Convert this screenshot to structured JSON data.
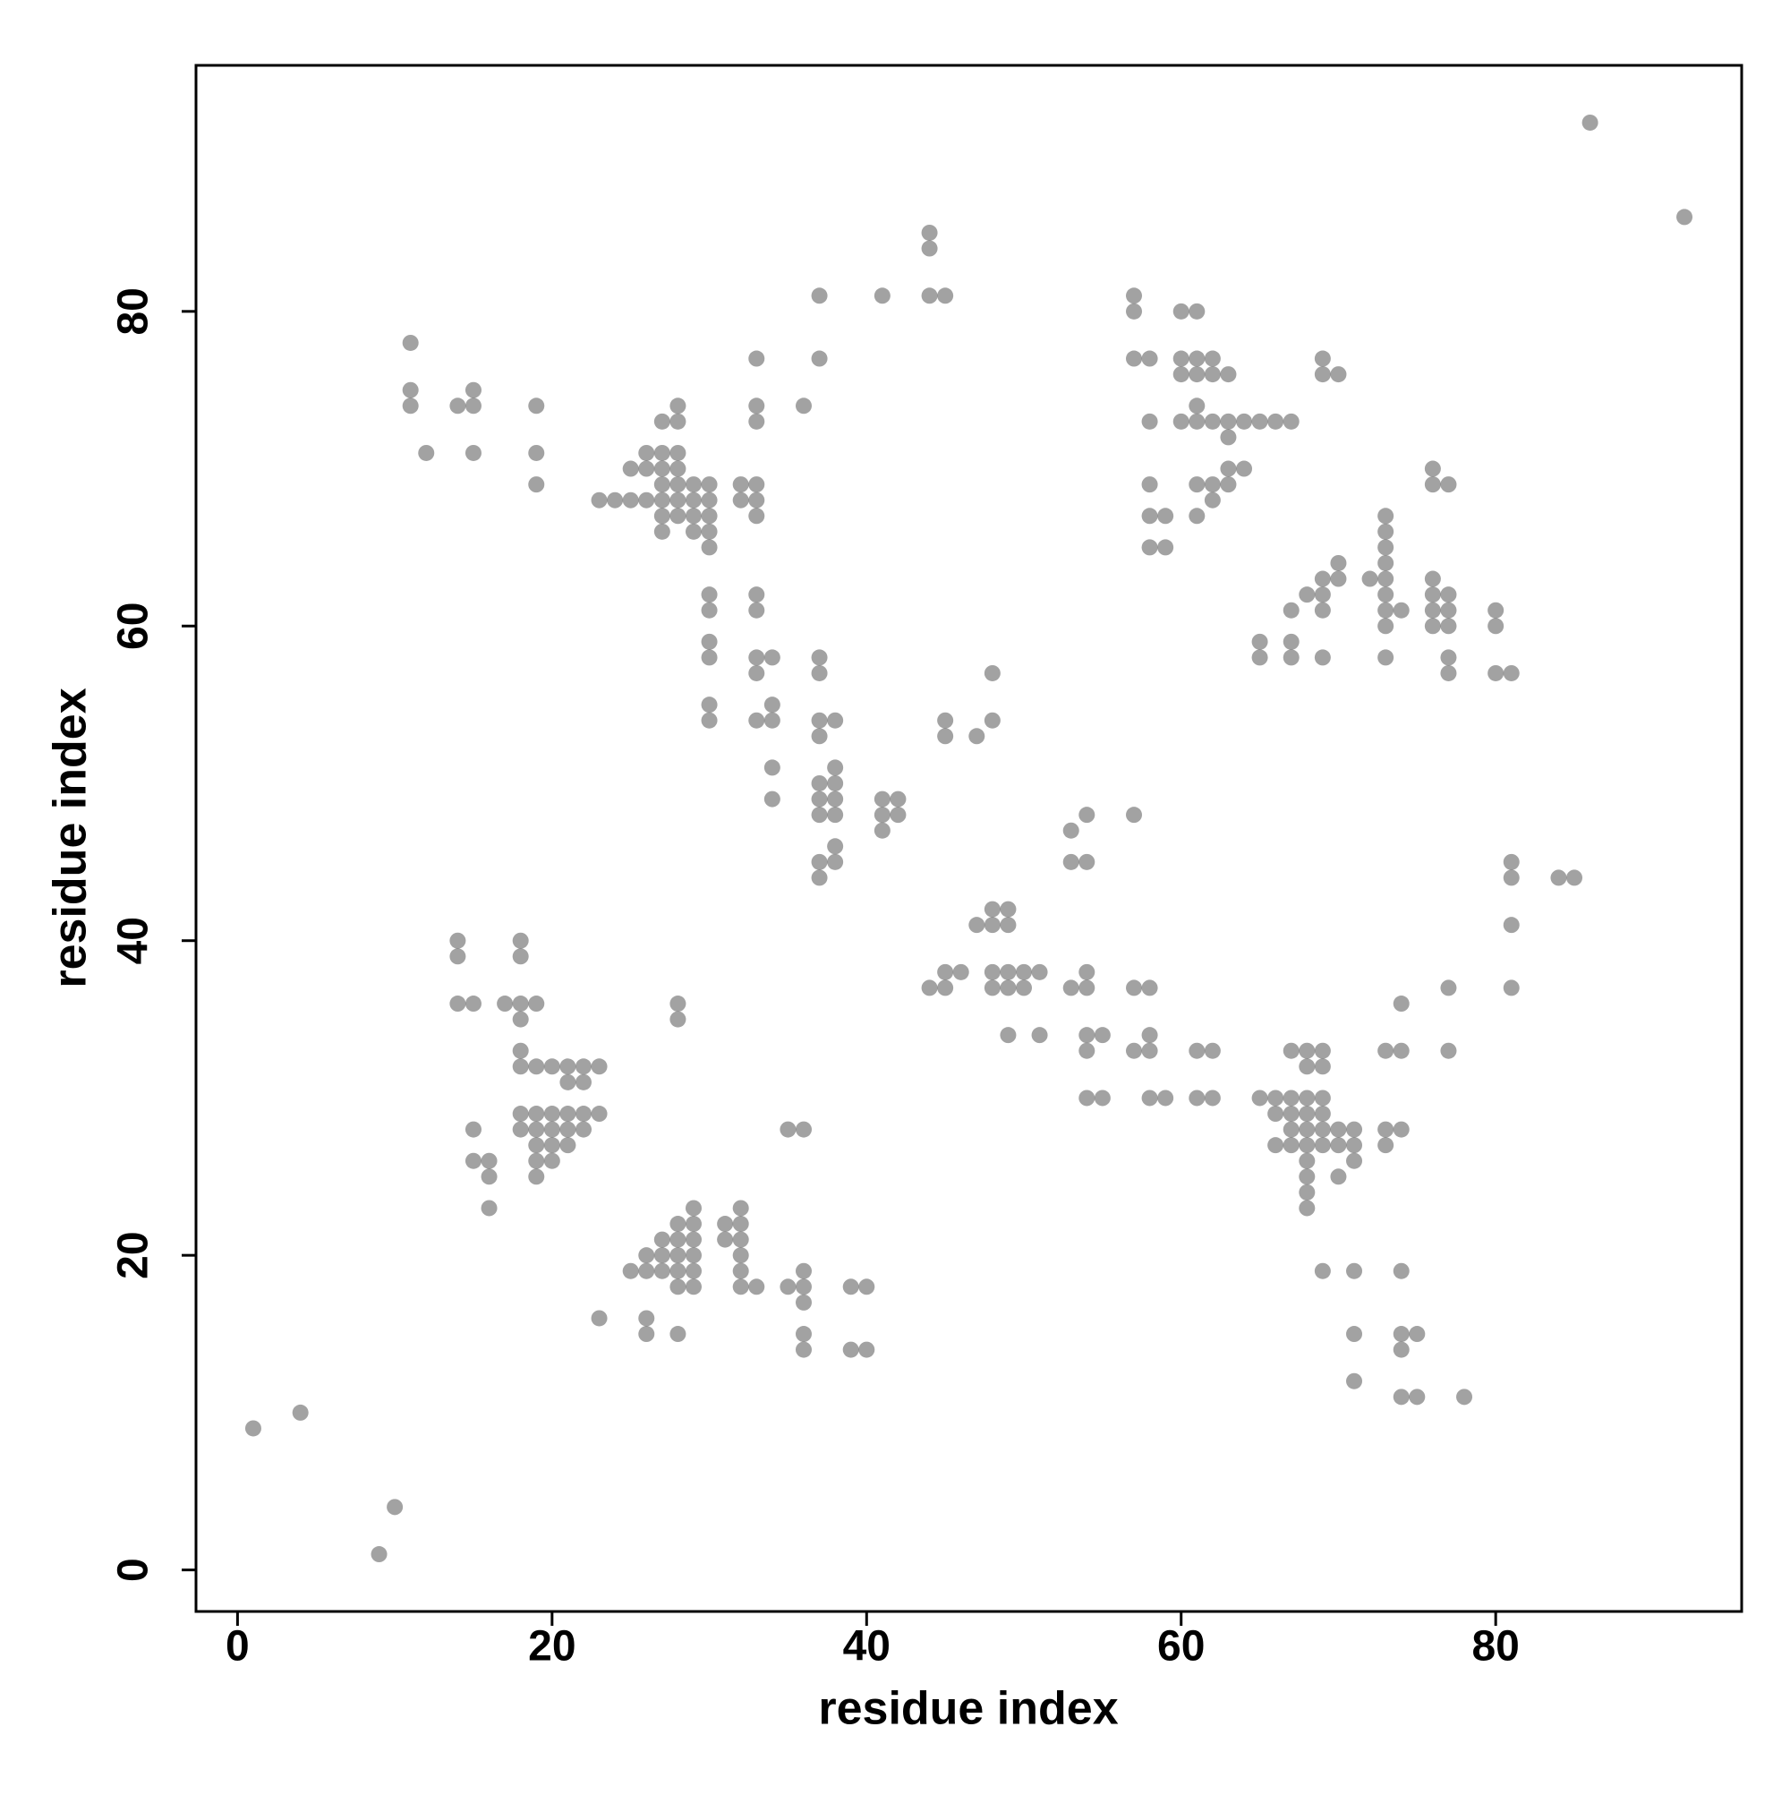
{
  "chart_data": {
    "type": "scatter",
    "x_label": "residue index",
    "y_label": "residue index",
    "color": "#555555",
    "xlim": [
      -2.64,
      95.64
    ],
    "ylim": [
      -2.64,
      95.64
    ],
    "xticks": [
      0,
      20,
      40,
      60,
      80
    ],
    "yticks": [
      0,
      20,
      40,
      60,
      80
    ],
    "grid": false,
    "x": [
      1,
      4,
      10,
      9,
      86,
      92,
      11,
      11,
      11,
      12,
      14,
      15,
      15,
      15,
      19,
      19,
      19,
      23,
      24,
      25,
      25,
      26,
      26,
      26,
      27,
      27,
      27,
      27,
      27,
      27,
      27,
      28,
      28,
      28,
      28,
      28,
      28,
      28,
      29,
      29,
      29,
      29,
      30,
      30,
      30,
      30,
      30,
      32,
      32,
      33,
      33,
      33,
      33,
      33,
      33,
      36,
      37,
      37,
      41,
      44,
      44,
      44,
      45,
      30,
      30,
      30,
      30,
      30,
      30,
      33,
      33,
      33,
      33,
      34,
      33,
      34,
      34,
      34,
      34,
      37,
      37,
      37,
      37,
      38,
      37,
      38,
      38,
      37,
      38,
      37,
      38,
      38,
      37,
      38,
      37,
      41,
      42,
      41,
      42,
      41,
      45,
      45,
      47,
      48,
      48,
      53,
      53,
      54,
      54,
      57,
      44,
      45,
      45,
      46,
      47,
      48,
      48,
      49,
      49,
      48,
      48,
      49,
      49,
      50,
      50,
      51,
      49,
      51,
      53,
      54,
      54,
      54,
      55,
      54,
      54,
      55,
      57,
      58,
      57,
      58,
      58,
      58,
      59,
      61,
      62,
      61,
      62,
      65,
      66,
      66,
      66,
      67,
      67,
      67,
      67,
      67,
      68,
      68,
      68,
      68,
      68,
      68,
      68,
      68,
      68,
      68,
      69,
      69,
      69,
      69,
      69,
      69,
      70,
      70,
      70,
      71,
      71,
      71,
      73,
      73,
      73,
      74,
      74,
      74,
      77,
      77,
      69,
      71,
      74,
      71,
      71,
      74,
      74,
      75,
      74,
      75,
      78,
      81,
      81,
      81,
      81,
      84,
      85,
      57,
      57,
      57,
      58,
      58,
      58,
      58,
      59,
      58,
      59,
      60,
      61,
      60,
      61,
      62,
      60,
      61,
      62,
      63,
      60,
      61,
      61,
      62,
      63,
      64,
      65,
      66,
      67,
      63,
      61,
      62,
      63,
      64,
      63,
      62,
      61,
      69,
      69,
      70,
      65,
      65,
      67,
      67,
      67,
      68,
      69,
      69,
      69,
      70,
      70,
      69,
      72,
      73,
      73,
      73,
      73,
      73,
      73,
      73,
      73,
      74,
      73,
      76,
      76,
      77,
      76,
      76,
      77,
      76,
      77,
      76,
      77,
      77,
      77,
      80,
      80,
      80,
      81,
      14,
      14,
      14,
      15,
      17,
      18,
      18,
      18,
      18,
      18,
      18,
      19,
      19,
      20,
      21,
      22,
      23,
      21,
      22,
      18,
      19,
      20,
      21,
      22,
      23,
      18,
      19,
      20,
      21,
      22,
      19,
      20,
      21,
      19,
      20,
      19,
      15,
      15,
      16,
      16,
      16,
      28,
      28,
      23,
      26,
      26,
      25,
      26,
      26,
      27,
      27,
      27,
      28,
      28,
      28,
      28,
      28,
      29,
      29,
      29,
      29,
      29,
      29,
      28,
      31,
      31,
      32,
      32,
      32,
      32,
      32,
      32,
      33,
      35,
      36,
      36,
      36,
      36,
      36,
      35,
      36,
      39,
      40,
      39,
      40
    ],
    "y": [
      9,
      10,
      4,
      1,
      92,
      86,
      78,
      75,
      74,
      71,
      74,
      75,
      74,
      71,
      74,
      71,
      69,
      68,
      68,
      68,
      70,
      68,
      71,
      70,
      71,
      70,
      69,
      68,
      67,
      66,
      73,
      74,
      73,
      71,
      70,
      69,
      68,
      67,
      69,
      68,
      67,
      66,
      69,
      68,
      67,
      66,
      65,
      69,
      68,
      69,
      68,
      67,
      74,
      73,
      77,
      74,
      77,
      81,
      81,
      85,
      84,
      81,
      81,
      62,
      61,
      59,
      58,
      55,
      54,
      62,
      61,
      58,
      57,
      58,
      54,
      55,
      54,
      51,
      49,
      58,
      57,
      54,
      53,
      54,
      50,
      51,
      50,
      49,
      49,
      48,
      48,
      46,
      45,
      45,
      44,
      49,
      49,
      48,
      48,
      47,
      54,
      53,
      53,
      54,
      57,
      47,
      45,
      45,
      48,
      48,
      37,
      38,
      37,
      38,
      41,
      42,
      41,
      42,
      41,
      38,
      37,
      38,
      37,
      38,
      37,
      38,
      34,
      34,
      37,
      38,
      37,
      34,
      34,
      33,
      30,
      30,
      37,
      37,
      33,
      34,
      33,
      30,
      30,
      33,
      33,
      30,
      30,
      30,
      30,
      29,
      27,
      33,
      30,
      29,
      28,
      27,
      33,
      32,
      30,
      29,
      28,
      27,
      26,
      25,
      24,
      23,
      33,
      32,
      30,
      29,
      28,
      27,
      28,
      27,
      25,
      28,
      27,
      26,
      33,
      28,
      27,
      36,
      33,
      28,
      37,
      33,
      19,
      19,
      19,
      15,
      12,
      15,
      14,
      15,
      11,
      11,
      11,
      45,
      44,
      41,
      37,
      44,
      44,
      81,
      80,
      77,
      77,
      73,
      69,
      67,
      67,
      65,
      65,
      80,
      80,
      77,
      77,
      77,
      76,
      76,
      76,
      76,
      73,
      74,
      73,
      73,
      73,
      73,
      73,
      73,
      73,
      72,
      69,
      69,
      70,
      70,
      69,
      68,
      67,
      77,
      76,
      76,
      59,
      58,
      61,
      59,
      58,
      62,
      63,
      62,
      61,
      64,
      63,
      58,
      63,
      67,
      66,
      65,
      64,
      63,
      62,
      61,
      60,
      61,
      58,
      70,
      69,
      69,
      63,
      62,
      62,
      61,
      61,
      60,
      60,
      58,
      57,
      61,
      60,
      57,
      57,
      40,
      39,
      36,
      36,
      36,
      36,
      40,
      39,
      35,
      33,
      32,
      36,
      32,
      32,
      32,
      32,
      32,
      31,
      31,
      29,
      29,
      29,
      29,
      29,
      29,
      28,
      28,
      28,
      28,
      28,
      27,
      27,
      27,
      26,
      26,
      25,
      28,
      26,
      26,
      25,
      23,
      36,
      35,
      16,
      16,
      15,
      19,
      20,
      19,
      21,
      20,
      19,
      22,
      21,
      20,
      19,
      18,
      23,
      22,
      21,
      20,
      19,
      18,
      15,
      22,
      21,
      23,
      22,
      21,
      20,
      19,
      18,
      18,
      18,
      18,
      19,
      17,
      15,
      14,
      28,
      28,
      18,
      18,
      14,
      14
    ]
  }
}
